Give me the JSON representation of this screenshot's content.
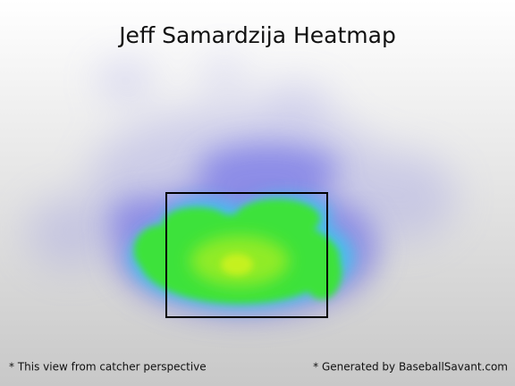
{
  "chart_data": {
    "type": "heatmap",
    "title": "Jeff Samardzija Heatmap",
    "notes": [
      "* This view from catcher perspective",
      "* Generated by BaseballSavant.com"
    ]
  }
}
